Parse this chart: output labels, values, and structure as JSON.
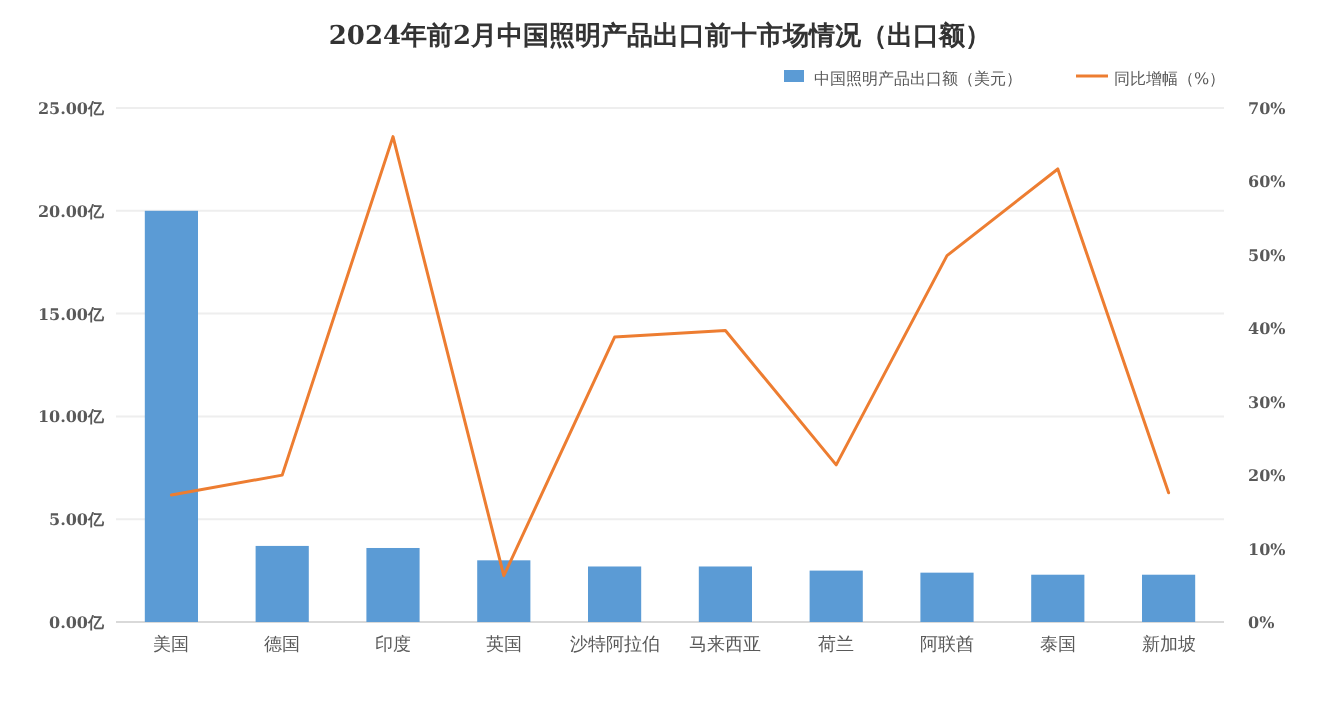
{
  "chart_data": {
    "type": "bar",
    "title": "2024年前2月中国照明产品出口前十市场情况（出口额）",
    "categories": [
      "美国",
      "德国",
      "印度",
      "英国",
      "沙特阿拉伯",
      "马来西亚",
      "荷兰",
      "阿联酋",
      "泰国",
      "新加坡"
    ],
    "series": [
      {
        "name": "中国照明产品出口额（美元）",
        "color": "#5b9bd5",
        "values": [
          20.0,
          3.7,
          3.6,
          3.0,
          2.7,
          2.7,
          2.5,
          2.4,
          2.3,
          2.3
        ]
      },
      {
        "name": "同比增幅（%）",
        "type": "line",
        "axis": "y2",
        "color": "#ed7d31",
        "values": [
          17.3,
          20.0,
          66.1,
          6.3,
          38.8,
          39.7,
          21.4,
          49.9,
          61.7,
          17.6
        ]
      }
    ],
    "ylim": [
      0,
      25
    ],
    "yticks": [
      {
        "value": 0,
        "label": "0.00亿"
      },
      {
        "value": 5,
        "label": "5.00亿"
      },
      {
        "value": 10,
        "label": "10.00亿"
      },
      {
        "value": 15,
        "label": "15.00亿"
      },
      {
        "value": 20,
        "label": "20.00亿"
      },
      {
        "value": 25,
        "label": "25.00亿"
      }
    ],
    "y2lim": [
      0,
      70
    ],
    "y2ticks": [
      {
        "value": 0,
        "label": "0%"
      },
      {
        "value": 10,
        "label": "10%"
      },
      {
        "value": 20,
        "label": "20%"
      },
      {
        "value": 30,
        "label": "30%"
      },
      {
        "value": 40,
        "label": "40%"
      },
      {
        "value": 50,
        "label": "50%"
      },
      {
        "value": 60,
        "label": "60%"
      },
      {
        "value": 70,
        "label": "70%"
      }
    ],
    "grid": "y",
    "legend": "top right",
    "marker": "none",
    "line_style": "solid"
  }
}
